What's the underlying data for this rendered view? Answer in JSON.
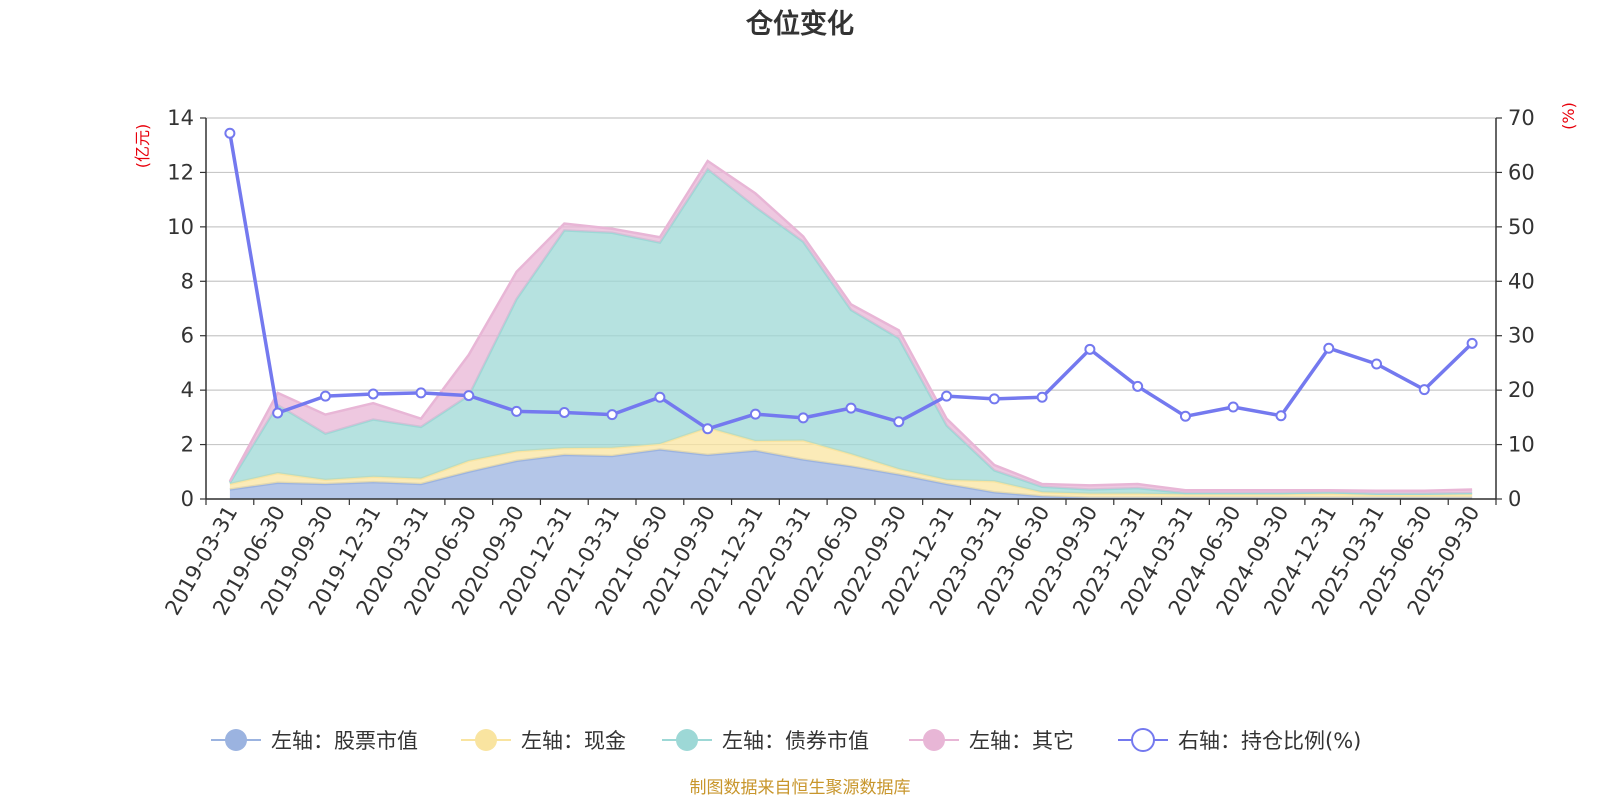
{
  "chart_data": {
    "type": "area",
    "title": "仓位变化",
    "left_unit": "(亿元)",
    "right_unit": "(%)",
    "ylim_left": [
      0,
      14
    ],
    "yticks_left": [
      0,
      2,
      4,
      6,
      8,
      10,
      12,
      14
    ],
    "ylim_right": [
      0,
      70
    ],
    "yticks_right": [
      0,
      10,
      20,
      30,
      40,
      50,
      60,
      70
    ],
    "categories": [
      "2019-03-31",
      "2019-06-30",
      "2019-09-30",
      "2019-12-31",
      "2020-03-31",
      "2020-06-30",
      "2020-09-30",
      "2020-12-31",
      "2021-03-31",
      "2021-06-30",
      "2021-09-30",
      "2021-12-31",
      "2022-03-31",
      "2022-06-30",
      "2022-09-30",
      "2022-12-31",
      "2023-03-31",
      "2023-06-30",
      "2023-09-30",
      "2023-12-31",
      "2024-03-31",
      "2024-06-30",
      "2024-09-30",
      "2024-12-31",
      "2025-03-31",
      "2025-06-30",
      "2025-09-30"
    ],
    "series": [
      {
        "name": "左轴：股票市值",
        "axis": "left",
        "kind": "area",
        "color": "#9bb3e0",
        "values": [
          0.35,
          0.6,
          0.55,
          0.62,
          0.55,
          1.0,
          1.4,
          1.62,
          1.58,
          1.82,
          1.62,
          1.78,
          1.45,
          1.2,
          0.9,
          0.55,
          0.25,
          0.1,
          0.05,
          0.05,
          0.05,
          0.05,
          0.05,
          0.05,
          0.05,
          0.05,
          0.05
        ]
      },
      {
        "name": "左轴：现金",
        "axis": "left",
        "kind": "area",
        "color": "#f9e4a0",
        "values": [
          0.2,
          0.35,
          0.15,
          0.2,
          0.2,
          0.4,
          0.35,
          0.25,
          0.3,
          0.2,
          1.0,
          0.35,
          0.7,
          0.45,
          0.2,
          0.15,
          0.4,
          0.15,
          0.15,
          0.15,
          0.12,
          0.12,
          0.12,
          0.15,
          0.1,
          0.1,
          0.12
        ]
      },
      {
        "name": "左轴：债券市值",
        "axis": "left",
        "kind": "area",
        "color": "#9dd8d6",
        "values": [
          0.05,
          2.5,
          1.7,
          2.1,
          1.9,
          2.4,
          5.6,
          8.0,
          7.9,
          7.4,
          9.5,
          8.6,
          7.3,
          5.3,
          4.8,
          2.0,
          0.4,
          0.2,
          0.15,
          0.2,
          0.05,
          0.05,
          0.05,
          0.05,
          0.05,
          0.05,
          0.05
        ]
      },
      {
        "name": "左轴：其它",
        "axis": "left",
        "kind": "area",
        "color": "#e8b6d6",
        "values": [
          0.05,
          0.45,
          0.7,
          0.6,
          0.3,
          1.5,
          1.0,
          0.25,
          0.15,
          0.2,
          0.3,
          0.5,
          0.2,
          0.2,
          0.3,
          0.25,
          0.2,
          0.1,
          0.15,
          0.15,
          0.1,
          0.1,
          0.1,
          0.07,
          0.1,
          0.1,
          0.13
        ]
      },
      {
        "name": "右轴：持仓比例(%)",
        "axis": "right",
        "kind": "line",
        "color": "#7479ef",
        "values": [
          67.2,
          15.8,
          18.9,
          19.3,
          19.5,
          19.0,
          16.1,
          15.9,
          15.5,
          18.7,
          12.9,
          15.6,
          14.9,
          16.7,
          14.2,
          18.9,
          18.4,
          18.7,
          27.5,
          20.7,
          15.2,
          16.9,
          15.3,
          27.7,
          24.8,
          20.1,
          28.6
        ]
      }
    ],
    "source_note": "制图数据来自恒生聚源数据库"
  }
}
